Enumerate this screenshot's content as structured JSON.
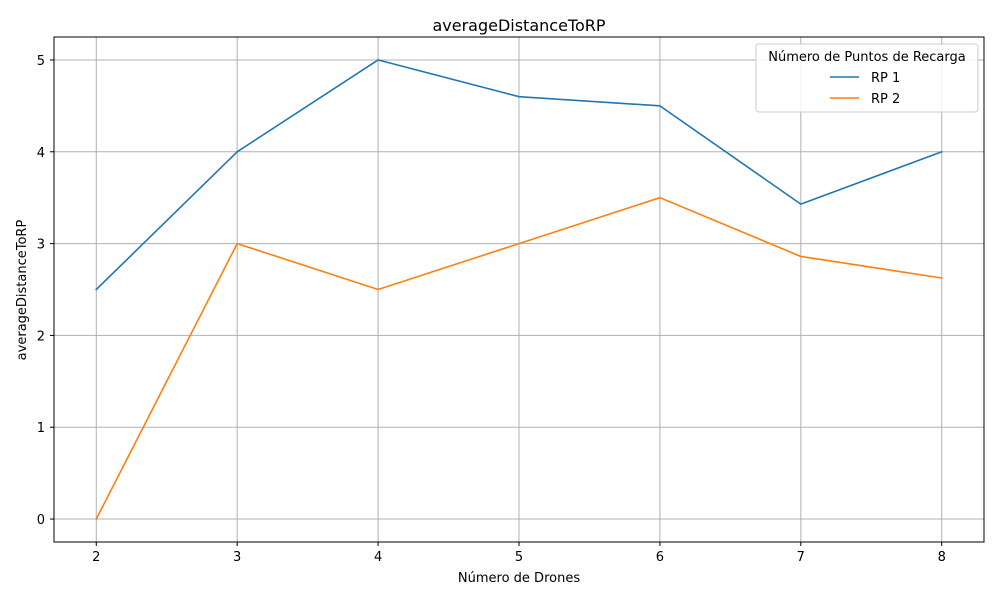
{
  "chart_data": {
    "type": "line",
    "title": "averageDistanceToRP",
    "xlabel": "Número de Drones",
    "ylabel": "averageDistanceToRP",
    "x": [
      2,
      3,
      4,
      5,
      6,
      7,
      8
    ],
    "xlim": [
      1.7,
      8.3
    ],
    "ylim": [
      -0.25,
      5.25
    ],
    "xticks": [
      2,
      3,
      4,
      5,
      6,
      7,
      8
    ],
    "yticks": [
      0,
      1,
      2,
      3,
      4,
      5
    ],
    "grid": true,
    "legend": {
      "title": "Número de Puntos de Recarga",
      "placement": "top-right"
    },
    "series": [
      {
        "name": "RP 1",
        "color": "#1f77b4",
        "values": [
          2.5,
          4.0,
          5.0,
          4.6,
          4.5,
          3.43,
          4.0
        ]
      },
      {
        "name": "RP 2",
        "color": "#ff7f0e",
        "values": [
          0.0,
          3.0,
          2.5,
          3.0,
          3.5,
          2.86,
          2.625
        ]
      }
    ]
  }
}
